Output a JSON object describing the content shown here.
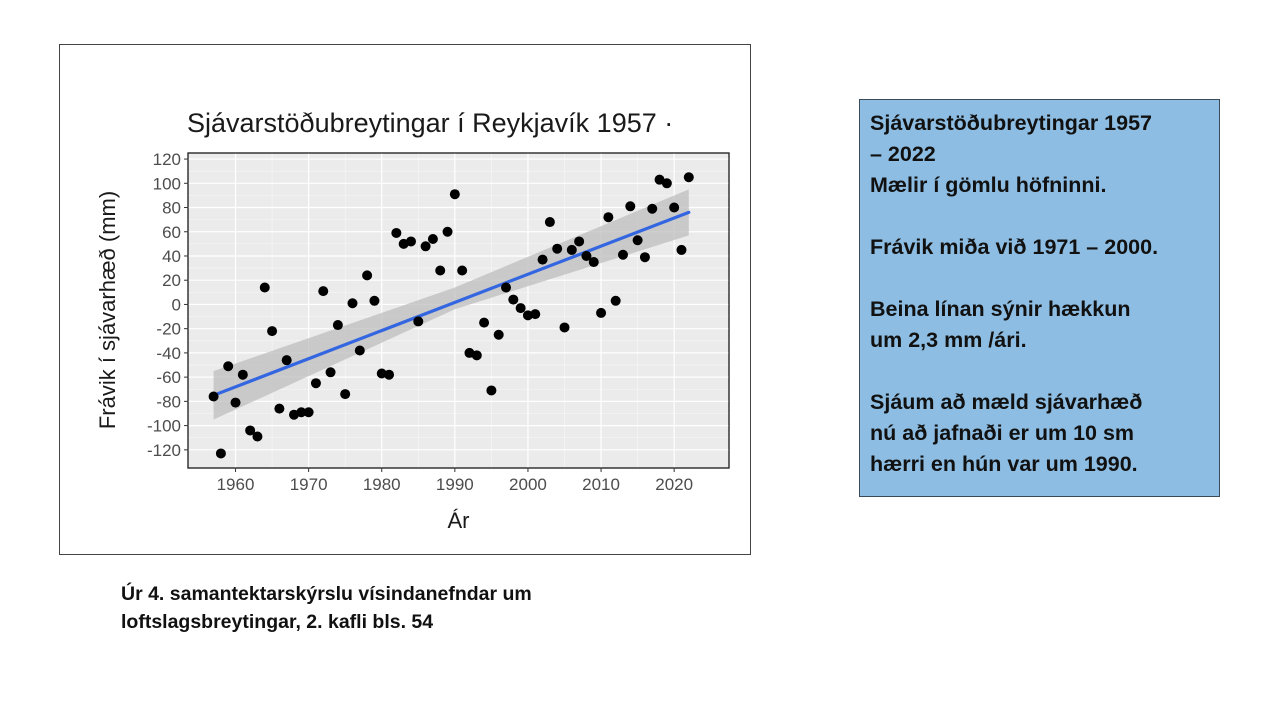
{
  "chart_data": {
    "type": "scatter",
    "title": "Sjávarstöðubreytingar í Reykjavík 1957 ·",
    "xlabel": "Ár",
    "ylabel": "Frávik í sjávarhæð (mm)",
    "xlim": [
      1953.5,
      2027.5
    ],
    "ylim": [
      -135,
      125
    ],
    "x_ticks": [
      1960,
      1970,
      1980,
      1990,
      2000,
      2010,
      2020
    ],
    "y_ticks": [
      -120,
      -100,
      -80,
      -60,
      -40,
      -20,
      0,
      20,
      40,
      60,
      80,
      100,
      120
    ],
    "grid": true,
    "background": "#ebebeb",
    "point_color": "#000000",
    "trend_color": "#3366e0",
    "band_color": "#bdbdbd",
    "points": [
      {
        "x": 1957,
        "y": -76
      },
      {
        "x": 1958,
        "y": -123
      },
      {
        "x": 1959,
        "y": -51
      },
      {
        "x": 1960,
        "y": -81
      },
      {
        "x": 1961,
        "y": -58
      },
      {
        "x": 1962,
        "y": -104
      },
      {
        "x": 1963,
        "y": -109
      },
      {
        "x": 1964,
        "y": 14
      },
      {
        "x": 1965,
        "y": -22
      },
      {
        "x": 1966,
        "y": -86
      },
      {
        "x": 1967,
        "y": -46
      },
      {
        "x": 1968,
        "y": -91
      },
      {
        "x": 1969,
        "y": -89
      },
      {
        "x": 1970,
        "y": -89
      },
      {
        "x": 1971,
        "y": -65
      },
      {
        "x": 1972,
        "y": 11
      },
      {
        "x": 1973,
        "y": -56
      },
      {
        "x": 1974,
        "y": -17
      },
      {
        "x": 1975,
        "y": -74
      },
      {
        "x": 1976,
        "y": 1
      },
      {
        "x": 1977,
        "y": -38
      },
      {
        "x": 1978,
        "y": 24
      },
      {
        "x": 1979,
        "y": 3
      },
      {
        "x": 1980,
        "y": -57
      },
      {
        "x": 1981,
        "y": -58
      },
      {
        "x": 1982,
        "y": 59
      },
      {
        "x": 1983,
        "y": 50
      },
      {
        "x": 1984,
        "y": 52
      },
      {
        "x": 1985,
        "y": -14
      },
      {
        "x": 1986,
        "y": 48
      },
      {
        "x": 1987,
        "y": 54
      },
      {
        "x": 1988,
        "y": 28
      },
      {
        "x": 1989,
        "y": 60
      },
      {
        "x": 1990,
        "y": 91
      },
      {
        "x": 1991,
        "y": 28
      },
      {
        "x": 1992,
        "y": -40
      },
      {
        "x": 1993,
        "y": -42
      },
      {
        "x": 1994,
        "y": -15
      },
      {
        "x": 1995,
        "y": -71
      },
      {
        "x": 1996,
        "y": -25
      },
      {
        "x": 1997,
        "y": 14
      },
      {
        "x": 1998,
        "y": 4
      },
      {
        "x": 1999,
        "y": -3
      },
      {
        "x": 2000,
        "y": -9
      },
      {
        "x": 2001,
        "y": -8
      },
      {
        "x": 2002,
        "y": 37
      },
      {
        "x": 2003,
        "y": 68
      },
      {
        "x": 2004,
        "y": 46
      },
      {
        "x": 2005,
        "y": -19
      },
      {
        "x": 2006,
        "y": 45
      },
      {
        "x": 2007,
        "y": 52
      },
      {
        "x": 2008,
        "y": 40
      },
      {
        "x": 2009,
        "y": 35
      },
      {
        "x": 2010,
        "y": -7
      },
      {
        "x": 2011,
        "y": 72
      },
      {
        "x": 2012,
        "y": 3
      },
      {
        "x": 2013,
        "y": 41
      },
      {
        "x": 2014,
        "y": 81
      },
      {
        "x": 2015,
        "y": 53
      },
      {
        "x": 2016,
        "y": 39
      },
      {
        "x": 2017,
        "y": 79
      },
      {
        "x": 2018,
        "y": 103
      },
      {
        "x": 2019,
        "y": 100
      },
      {
        "x": 2020,
        "y": 80
      },
      {
        "x": 2021,
        "y": 45
      },
      {
        "x": 2022,
        "y": 105
      }
    ],
    "trend": {
      "x": [
        1957,
        2022
      ],
      "y": [
        -75,
        76
      ]
    },
    "confidence_band": {
      "x": [
        1957,
        1990,
        2022
      ],
      "upper": [
        -55,
        14,
        95
      ],
      "lower": [
        -95,
        -4,
        57
      ]
    }
  },
  "info_box": {
    "title_line1": "Sjávarstöðubreytingar 1957",
    "title_line2": "– 2022",
    "line3": "Mælir í gömlu höfninni.",
    "para2": "Frávik miða við 1971 – 2000.",
    "para3_line1": "Beina línan sýnir hækkun",
    "para3_line2": "um 2,3 mm /ári.",
    "para4_line1": "Sjáum að mæld sjávarhæð",
    "para4_line2": "nú að jafnaði er um 10 sm",
    "para4_line3": "hærri en hún var um 1990."
  },
  "caption": {
    "line1": "Úr 4. samantektarskýrslu vísindanefndar um",
    "line2": "loftslagsbreytingar, 2. kafli bls. 54"
  }
}
